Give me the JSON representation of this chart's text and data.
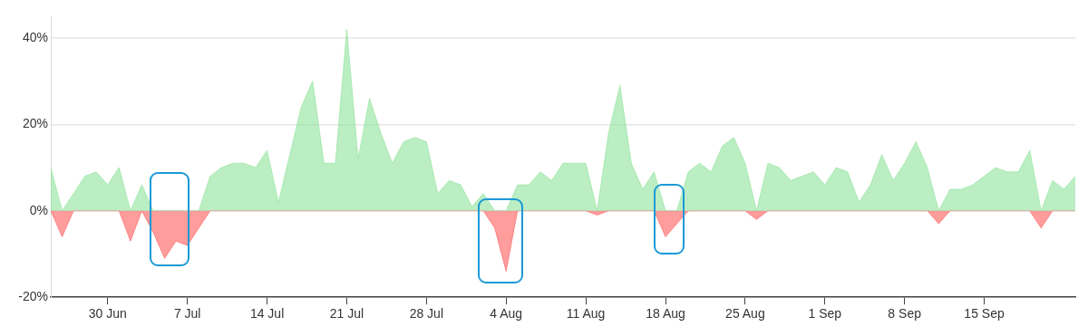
{
  "chart_data": {
    "type": "area",
    "x": [
      "--06-25",
      "--06-26",
      "--06-27",
      "--06-28",
      "--06-29",
      "--06-30",
      "--07-01",
      "--07-02",
      "--07-03",
      "--07-04",
      "--07-05",
      "--07-06",
      "--07-07",
      "--07-08",
      "--07-09",
      "--07-10",
      "--07-11",
      "--07-12",
      "--07-13",
      "--07-14",
      "--07-15",
      "--07-16",
      "--07-17",
      "--07-18",
      "--07-19",
      "--07-20",
      "--07-21",
      "--07-22",
      "--07-23",
      "--07-24",
      "--07-25",
      "--07-26",
      "--07-27",
      "--07-28",
      "--07-29",
      "--07-30",
      "--07-31",
      "--08-01",
      "--08-02",
      "--08-03",
      "--08-04",
      "--08-05",
      "--08-06",
      "--08-07",
      "--08-08",
      "--08-09",
      "--08-10",
      "--08-11",
      "--08-12",
      "--08-13",
      "--08-14",
      "--08-15",
      "--08-16",
      "--08-17",
      "--08-18",
      "--08-19",
      "--08-20",
      "--08-21",
      "--08-22",
      "--08-23",
      "--08-24",
      "--08-25",
      "--08-26",
      "--08-27",
      "--08-28",
      "--08-29",
      "--08-30",
      "--08-31",
      "--09-01",
      "--09-02",
      "--09-03",
      "--09-04",
      "--09-05",
      "--09-06",
      "--09-07",
      "--09-08",
      "--09-09",
      "--09-10",
      "--09-11",
      "--09-12",
      "--09-13",
      "--09-14",
      "--09-15",
      "--09-16",
      "--09-17",
      "--09-18",
      "--09-19",
      "--09-20",
      "--09-21",
      "--09-22",
      "--09-23"
    ],
    "series": [
      {
        "color": "#8ee39a",
        "values": [
          10,
          0,
          4,
          8,
          9,
          6,
          10,
          0,
          6,
          0,
          0,
          0,
          0,
          0,
          8,
          10,
          11,
          11,
          10,
          14,
          2,
          13,
          24,
          30,
          11,
          11,
          42,
          12,
          26,
          18,
          11,
          16,
          17,
          16,
          4,
          7,
          6,
          1,
          4,
          0,
          0,
          6,
          6,
          9,
          7,
          11,
          11,
          11,
          0,
          18,
          29,
          11,
          5,
          9,
          0,
          0,
          9,
          11,
          9,
          15,
          17,
          11,
          0,
          11,
          10,
          7,
          8,
          9,
          6,
          10,
          9,
          2,
          6,
          13,
          7,
          11,
          16,
          10,
          0,
          5,
          5,
          6,
          8,
          10,
          9,
          9,
          14,
          0,
          7,
          5,
          8
        ]
      },
      {
        "color": "#ff5a5a",
        "values": [
          0,
          -6,
          0,
          0,
          0,
          0,
          0,
          -7,
          0,
          -5,
          -11,
          -7,
          -8,
          -4,
          0,
          0,
          0,
          0,
          0,
          0,
          0,
          0,
          0,
          0,
          0,
          0,
          0,
          0,
          0,
          0,
          0,
          0,
          0,
          0,
          0,
          0,
          0,
          0,
          0,
          -4,
          -14,
          0,
          0,
          0,
          0,
          0,
          0,
          0,
          -1,
          0,
          0,
          0,
          0,
          0,
          -6,
          -3,
          0,
          0,
          0,
          0,
          0,
          0,
          -2,
          0,
          0,
          0,
          0,
          0,
          0,
          0,
          0,
          0,
          0,
          0,
          0,
          0,
          0,
          0,
          -3,
          0,
          0,
          0,
          0,
          0,
          0,
          0,
          0,
          -4,
          0,
          0,
          0
        ]
      }
    ],
    "xlim": [
      "--06-25",
      "--09-23"
    ],
    "xticks": [
      {
        "value": "--06-30",
        "label": "30 Jun"
      },
      {
        "value": "--07-07",
        "label": "7 Jul"
      },
      {
        "value": "--07-14",
        "label": "14 Jul"
      },
      {
        "value": "--07-21",
        "label": "21 Jul"
      },
      {
        "value": "--07-28",
        "label": "28 Jul"
      },
      {
        "value": "--08-04",
        "label": "4 Aug"
      },
      {
        "value": "--08-11",
        "label": "11 Aug"
      },
      {
        "value": "--08-18",
        "label": "18 Aug"
      },
      {
        "value": "--08-25",
        "label": "25 Aug"
      },
      {
        "value": "--09-01",
        "label": "1 Sep"
      },
      {
        "value": "--09-08",
        "label": "8 Sep"
      },
      {
        "value": "--09-15",
        "label": "15 Sep"
      }
    ],
    "ylim": [
      -20,
      45
    ],
    "yticks": [
      {
        "value": -20,
        "label": "-20%"
      },
      {
        "value": 0,
        "label": "0%"
      },
      {
        "value": 20,
        "label": "20%"
      },
      {
        "value": 40,
        "label": "40%"
      }
    ],
    "grid": "y",
    "legend": false,
    "marker": "none",
    "line_style": "solid"
  }
}
